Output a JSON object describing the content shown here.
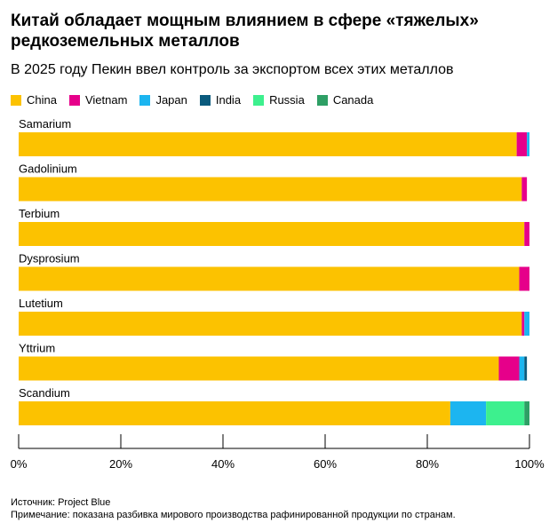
{
  "chart_data": {
    "type": "bar",
    "orientation": "horizontal",
    "stacked": true,
    "title": "Китай обладает мощным влиянием в сфере «тяжелых» редкоземельных металлов",
    "subtitle": "В 2025 году Пекин ввел контроль за экспортом всех этих металлов",
    "categories": [
      "Samarium",
      "Gadolinium",
      "Terbium",
      "Dysprosium",
      "Lutetium",
      "Yttrium",
      "Scandium"
    ],
    "series": [
      {
        "name": "China",
        "color": "#FCC200",
        "values": [
          97.5,
          98.5,
          99.0,
          98.0,
          98.5,
          94.0,
          84.5
        ]
      },
      {
        "name": "Vietnam",
        "color": "#E6008A",
        "values": [
          2.0,
          1.0,
          1.0,
          2.0,
          0.5,
          4.0,
          0.0
        ]
      },
      {
        "name": "Japan",
        "color": "#1CB5F0",
        "values": [
          0.5,
          0.0,
          0.0,
          0.0,
          1.0,
          1.0,
          7.0
        ]
      },
      {
        "name": "India",
        "color": "#0A5A7D",
        "values": [
          0.0,
          0.0,
          0.0,
          0.0,
          0.0,
          0.5,
          0.0
        ]
      },
      {
        "name": "Russia",
        "color": "#3DF08E",
        "values": [
          0.0,
          0.0,
          0.0,
          0.0,
          0.0,
          0.0,
          7.5
        ]
      },
      {
        "name": "Canada",
        "color": "#2E9F65",
        "values": [
          0.0,
          0.0,
          0.0,
          0.0,
          0.0,
          0.0,
          1.0
        ]
      }
    ],
    "xlim": [
      0,
      100
    ],
    "xticks": [
      "0%",
      "20%",
      "40%",
      "60%",
      "80%",
      "100%"
    ],
    "legend_position": "top-left",
    "grid": false
  },
  "footer": {
    "source": "Источник: Project Blue",
    "note": "Примечание: показана разбивка мирового производства рафинированной продукции по странам."
  }
}
